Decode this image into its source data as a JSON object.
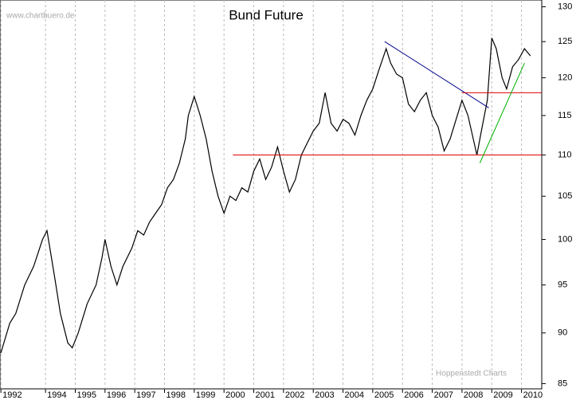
{
  "chart_data": {
    "type": "line",
    "title": "Bund Future",
    "source": "www.chartbuero.de",
    "credit": "Hoppenstedt Charts",
    "log_scale": true,
    "grid": true,
    "xlim": [
      1992.47,
      2010.68
    ],
    "ylim": [
      84.5,
      131
    ],
    "yticks": [
      85,
      90,
      95,
      100,
      105,
      110,
      115,
      120,
      125,
      130
    ],
    "xticks": [
      {
        "value": 1992.5,
        "label": "1992"
      },
      1994,
      1995,
      1996,
      1997,
      1998,
      1999,
      2000,
      2001,
      2002,
      2003,
      2004,
      2005,
      2006,
      2007,
      2008,
      2009,
      2010
    ],
    "series": [
      {
        "name": "Bund Future",
        "color": "#000000",
        "x": [
          1992.5,
          1992.8,
          1993.0,
          1993.3,
          1993.6,
          1993.9,
          1994.05,
          1994.3,
          1994.5,
          1994.75,
          1994.9,
          1995.1,
          1995.4,
          1995.7,
          1995.9,
          1996.0,
          1996.2,
          1996.4,
          1996.6,
          1996.9,
          1997.1,
          1997.3,
          1997.5,
          1997.7,
          1997.9,
          1998.1,
          1998.3,
          1998.5,
          1998.7,
          1998.8,
          1999.0,
          1999.2,
          1999.4,
          1999.6,
          1999.8,
          2000.0,
          2000.2,
          2000.4,
          2000.6,
          2000.8,
          2001.0,
          2001.2,
          2001.4,
          2001.6,
          2001.8,
          2002.0,
          2002.2,
          2002.4,
          2002.6,
          2002.8,
          2003.0,
          2003.2,
          2003.4,
          2003.6,
          2003.8,
          2004.0,
          2004.2,
          2004.4,
          2004.6,
          2004.8,
          2005.0,
          2005.2,
          2005.45,
          2005.6,
          2005.8,
          2006.0,
          2006.2,
          2006.4,
          2006.6,
          2006.8,
          2007.0,
          2007.2,
          2007.4,
          2007.6,
          2007.8,
          2008.0,
          2008.2,
          2008.5,
          2008.65,
          2008.85,
          2009.0,
          2009.15,
          2009.35,
          2009.5,
          2009.7,
          2009.9,
          2010.1,
          2010.3
        ],
        "values": [
          88,
          91,
          92,
          95,
          97,
          100,
          101,
          96,
          92,
          89,
          88.5,
          90,
          93,
          95,
          98,
          100,
          97,
          95,
          97,
          99,
          101,
          100.5,
          102,
          103,
          104,
          106,
          107,
          109,
          112,
          115,
          117.5,
          115,
          112,
          108,
          105,
          103,
          105,
          104.5,
          106,
          105.5,
          108,
          109.5,
          107,
          108.5,
          111,
          108,
          105.5,
          107,
          110,
          111.5,
          113,
          114,
          118,
          114,
          113,
          114.5,
          114,
          112.5,
          115,
          117,
          118.5,
          121,
          124,
          122,
          120.5,
          120,
          116.5,
          115.5,
          117,
          118,
          115,
          113.5,
          110.5,
          112,
          114.5,
          117,
          115,
          110,
          113,
          117,
          125.5,
          124,
          120,
          118.5,
          121.5,
          122.5,
          124,
          123
        ]
      }
    ],
    "trendlines": [
      {
        "color": "#00008b",
        "x": [
          2005.4,
          2008.9
        ],
        "y": [
          125,
          116
        ]
      },
      {
        "color": "#e00000",
        "x": [
          2000.3,
          2010.68
        ],
        "y": [
          110,
          110
        ]
      },
      {
        "color": "#e00000",
        "x": [
          2008.0,
          2010.68
        ],
        "y": [
          118,
          118
        ]
      },
      {
        "color": "#00b000",
        "x": [
          2008.6,
          2010.1
        ],
        "y": [
          109,
          122
        ]
      }
    ]
  }
}
